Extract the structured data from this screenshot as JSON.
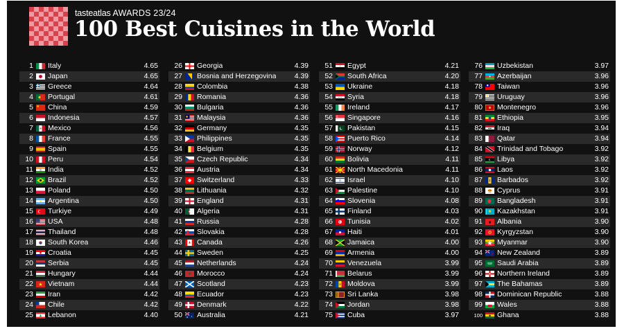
{
  "header": {
    "brand": "tasteatlas",
    "awards": "AWARDS 23/24",
    "title": "100 Best Cuisines in the World"
  },
  "colors": {
    "background": "#111111",
    "row_alt": "#2a2a2a",
    "text": "#ffffff",
    "logo_red": "#d9414c"
  },
  "logo_icon": "checkered-tablecloth-icon",
  "columns": [
    [
      {
        "rank": "1",
        "country": "Italy",
        "score": "4.65",
        "flag": "it"
      },
      {
        "rank": "2",
        "country": "Japan",
        "score": "4.65",
        "flag": "jp"
      },
      {
        "rank": "3",
        "country": "Greece",
        "score": "4.64",
        "flag": "gr"
      },
      {
        "rank": "4",
        "country": "Portugal",
        "score": "4.61",
        "flag": "pt"
      },
      {
        "rank": "5",
        "country": "China",
        "score": "4.59",
        "flag": "cn"
      },
      {
        "rank": "6",
        "country": "Indonesia",
        "score": "4.57",
        "flag": "id"
      },
      {
        "rank": "7",
        "country": "Mexico",
        "score": "4.56",
        "flag": "mx"
      },
      {
        "rank": "8",
        "country": "France",
        "score": "4.55",
        "flag": "fr"
      },
      {
        "rank": "9",
        "country": "Spain",
        "score": "4.55",
        "flag": "es"
      },
      {
        "rank": "10",
        "country": "Peru",
        "score": "4.54",
        "flag": "pe"
      },
      {
        "rank": "11",
        "country": "India",
        "score": "4.52",
        "flag": "in"
      },
      {
        "rank": "12",
        "country": "Brazil",
        "score": "4.52",
        "flag": "br"
      },
      {
        "rank": "13",
        "country": "Poland",
        "score": "4.50",
        "flag": "pl"
      },
      {
        "rank": "14",
        "country": "Argentina",
        "score": "4.50",
        "flag": "ar"
      },
      {
        "rank": "15",
        "country": "Turkiye",
        "score": "4.49",
        "flag": "tr"
      },
      {
        "rank": "16",
        "country": "USA",
        "score": "4.48",
        "flag": "us"
      },
      {
        "rank": "17",
        "country": "Thailand",
        "score": "4.48",
        "flag": "th"
      },
      {
        "rank": "18",
        "country": "South Korea",
        "score": "4.46",
        "flag": "kr"
      },
      {
        "rank": "19",
        "country": "Croatia",
        "score": "4.45",
        "flag": "hr"
      },
      {
        "rank": "20",
        "country": "Serbia",
        "score": "4.45",
        "flag": "rs"
      },
      {
        "rank": "21",
        "country": "Hungary",
        "score": "4.44",
        "flag": "hu"
      },
      {
        "rank": "22",
        "country": "Vietnam",
        "score": "4.44",
        "flag": "vn"
      },
      {
        "rank": "23",
        "country": "Iran",
        "score": "4.42",
        "flag": "ir"
      },
      {
        "rank": "24",
        "country": "Chile",
        "score": "4.42",
        "flag": "cl"
      },
      {
        "rank": "25",
        "country": "Lebanon",
        "score": "4.40",
        "flag": "lb"
      }
    ],
    [
      {
        "rank": "26",
        "country": "Georgia",
        "score": "4.39",
        "flag": "ge"
      },
      {
        "rank": "27",
        "country": "Bosnia and Herzegovina",
        "score": "4.39",
        "flag": "ba"
      },
      {
        "rank": "28",
        "country": "Colombia",
        "score": "4.38",
        "flag": "co"
      },
      {
        "rank": "29",
        "country": "Romania",
        "score": "4.36",
        "flag": "ro"
      },
      {
        "rank": "30",
        "country": "Bulgaria",
        "score": "4.36",
        "flag": "bg"
      },
      {
        "rank": "31",
        "country": "Malaysia",
        "score": "4.36",
        "flag": "my"
      },
      {
        "rank": "32",
        "country": "Germany",
        "score": "4.35",
        "flag": "de"
      },
      {
        "rank": "33",
        "country": "Philippines",
        "score": "4.35",
        "flag": "ph"
      },
      {
        "rank": "34",
        "country": "Belgium",
        "score": "4.35",
        "flag": "be"
      },
      {
        "rank": "35",
        "country": "Czech Republic",
        "score": "4.34",
        "flag": "cz"
      },
      {
        "rank": "36",
        "country": "Austria",
        "score": "4.34",
        "flag": "at"
      },
      {
        "rank": "37",
        "country": "Switzerland",
        "score": "4.33",
        "flag": "ch"
      },
      {
        "rank": "38",
        "country": "Lithuania",
        "score": "4.32",
        "flag": "lt"
      },
      {
        "rank": "39",
        "country": "England",
        "score": "4.31",
        "flag": "gb-eng"
      },
      {
        "rank": "40",
        "country": "Algeria",
        "score": "4.31",
        "flag": "dz"
      },
      {
        "rank": "41",
        "country": "Russia",
        "score": "4.28",
        "flag": "ru"
      },
      {
        "rank": "42",
        "country": "Slovakia",
        "score": "4.28",
        "flag": "sk"
      },
      {
        "rank": "43",
        "country": "Canada",
        "score": "4.26",
        "flag": "ca"
      },
      {
        "rank": "44",
        "country": "Sweden",
        "score": "4.25",
        "flag": "se"
      },
      {
        "rank": "45",
        "country": "Netherlands",
        "score": "4.24",
        "flag": "nl"
      },
      {
        "rank": "46",
        "country": "Morocco",
        "score": "4.24",
        "flag": "ma"
      },
      {
        "rank": "47",
        "country": "Scotland",
        "score": "4.23",
        "flag": "gb-sct"
      },
      {
        "rank": "48",
        "country": "Ecuador",
        "score": "4.23",
        "flag": "ec"
      },
      {
        "rank": "49",
        "country": "Denmark",
        "score": "4.22",
        "flag": "dk"
      },
      {
        "rank": "50",
        "country": "Australia",
        "score": "4.21",
        "flag": "au"
      }
    ],
    [
      {
        "rank": "51",
        "country": "Egypt",
        "score": "4.21",
        "flag": "eg"
      },
      {
        "rank": "52",
        "country": "South Africa",
        "score": "4.20",
        "flag": "za"
      },
      {
        "rank": "53",
        "country": "Ukraine",
        "score": "4.18",
        "flag": "ua"
      },
      {
        "rank": "54",
        "country": "Syria",
        "score": "4.18",
        "flag": "sy"
      },
      {
        "rank": "55",
        "country": "Ireland",
        "score": "4.17",
        "flag": "ie"
      },
      {
        "rank": "56",
        "country": "Singapore",
        "score": "4.16",
        "flag": "sg"
      },
      {
        "rank": "57",
        "country": "Pakistan",
        "score": "4.15",
        "flag": "pk"
      },
      {
        "rank": "58",
        "country": "Puerto Rico",
        "score": "4.14",
        "flag": "pr"
      },
      {
        "rank": "59",
        "country": "Norway",
        "score": "4.12",
        "flag": "no"
      },
      {
        "rank": "60",
        "country": "Bolivia",
        "score": "4.11",
        "flag": "bo"
      },
      {
        "rank": "61",
        "country": "North Macedonia",
        "score": "4.11",
        "flag": "mk"
      },
      {
        "rank": "62",
        "country": "Israel",
        "score": "4.10",
        "flag": "il"
      },
      {
        "rank": "63",
        "country": "Palestine",
        "score": "4.10",
        "flag": "ps"
      },
      {
        "rank": "64",
        "country": "Slovenia",
        "score": "4.08",
        "flag": "si"
      },
      {
        "rank": "65",
        "country": "Finland",
        "score": "4.03",
        "flag": "fi"
      },
      {
        "rank": "66",
        "country": "Tunisia",
        "score": "4.02",
        "flag": "tn"
      },
      {
        "rank": "67",
        "country": "Haiti",
        "score": "4.01",
        "flag": "ht"
      },
      {
        "rank": "68",
        "country": "Jamaica",
        "score": "4.00",
        "flag": "jm"
      },
      {
        "rank": "69",
        "country": "Armenia",
        "score": "4.00",
        "flag": "am"
      },
      {
        "rank": "70",
        "country": "Venezuela",
        "score": "3.99",
        "flag": "ve"
      },
      {
        "rank": "71",
        "country": "Belarus",
        "score": "3.99",
        "flag": "by"
      },
      {
        "rank": "72",
        "country": "Moldova",
        "score": "3.99",
        "flag": "md"
      },
      {
        "rank": "73",
        "country": "Sri Lanka",
        "score": "3.98",
        "flag": "lk"
      },
      {
        "rank": "74",
        "country": "Jordan",
        "score": "3.98",
        "flag": "jo"
      },
      {
        "rank": "75",
        "country": "Cuba",
        "score": "3.97",
        "flag": "cu"
      }
    ],
    [
      {
        "rank": "76",
        "country": "Uzbekistan",
        "score": "3.97",
        "flag": "uz"
      },
      {
        "rank": "77",
        "country": "Azerbaijan",
        "score": "3.96",
        "flag": "az"
      },
      {
        "rank": "78",
        "country": "Taiwan",
        "score": "3.96",
        "flag": "tw"
      },
      {
        "rank": "79",
        "country": "Uruguay",
        "score": "3.96",
        "flag": "uy"
      },
      {
        "rank": "80",
        "country": "Montenegro",
        "score": "3.96",
        "flag": "me"
      },
      {
        "rank": "81",
        "country": "Ethiopia",
        "score": "3.95",
        "flag": "et"
      },
      {
        "rank": "82",
        "country": "Iraq",
        "score": "3.94",
        "flag": "iq"
      },
      {
        "rank": "83",
        "country": "Qatar",
        "score": "3.94",
        "flag": "qa"
      },
      {
        "rank": "84",
        "country": "Trinidad and Tobago",
        "score": "3.92",
        "flag": "tt"
      },
      {
        "rank": "85",
        "country": "Libya",
        "score": "3.92",
        "flag": "ly"
      },
      {
        "rank": "86",
        "country": "Laos",
        "score": "3.92",
        "flag": "la"
      },
      {
        "rank": "87",
        "country": "Barbados",
        "score": "3.92",
        "flag": "bb"
      },
      {
        "rank": "88",
        "country": "Cyprus",
        "score": "3.91",
        "flag": "cy"
      },
      {
        "rank": "89",
        "country": "Bangladesh",
        "score": "3.91",
        "flag": "bd"
      },
      {
        "rank": "90",
        "country": "Kazakhstan",
        "score": "3.91",
        "flag": "kz"
      },
      {
        "rank": "91",
        "country": "Albania",
        "score": "3.90",
        "flag": "al"
      },
      {
        "rank": "92",
        "country": "Kyrgyzstan",
        "score": "3.90",
        "flag": "kg"
      },
      {
        "rank": "93",
        "country": "Myanmar",
        "score": "3.90",
        "flag": "mm"
      },
      {
        "rank": "94",
        "country": "New Zealand",
        "score": "3.89",
        "flag": "nz"
      },
      {
        "rank": "95",
        "country": "Saudi Arabia",
        "score": "3.89",
        "flag": "sa"
      },
      {
        "rank": "96",
        "country": "Northern Ireland",
        "score": "3.89",
        "flag": "gb-nir"
      },
      {
        "rank": "97",
        "country": "The Bahamas",
        "score": "3.89",
        "flag": "bs"
      },
      {
        "rank": "98",
        "country": "Dominican Republic",
        "score": "3.88",
        "flag": "do"
      },
      {
        "rank": "99",
        "country": "Wales",
        "score": "3.88",
        "flag": "gb-wls"
      },
      {
        "rank": "100",
        "country": "Ghana",
        "score": "3.88",
        "flag": "gh"
      }
    ]
  ]
}
